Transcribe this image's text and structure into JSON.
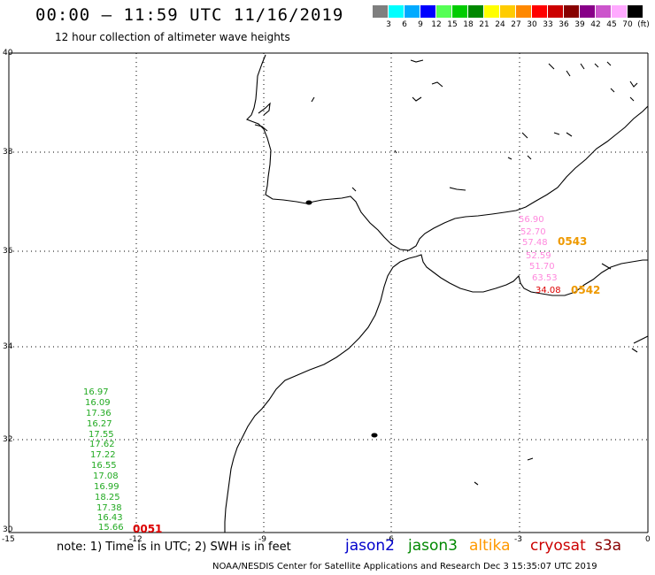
{
  "header": {
    "title": "00:00 – 11:59 UTC 11/16/2019",
    "subtitle": "12 hour collection of altimeter wave heights"
  },
  "colorbar": {
    "colors": [
      "#7f7f7f",
      "#00ffff",
      "#00aaff",
      "#0000ff",
      "#55ff55",
      "#00cc00",
      "#008800",
      "#ffff00",
      "#ffcc00",
      "#ff8800",
      "#ff0000",
      "#cc0000",
      "#880000",
      "#880088",
      "#cc55cc",
      "#ffaaff",
      "#000000"
    ],
    "labels": [
      "3",
      "6",
      "9",
      "12",
      "15",
      "18",
      "21",
      "24",
      "27",
      "30",
      "33",
      "36",
      "39",
      "42",
      "45",
      "70",
      "(ft)"
    ]
  },
  "map": {
    "x_ticks": [
      "-15",
      "-12",
      "-9",
      "-6",
      "-3",
      "0"
    ],
    "y_ticks": [
      "40",
      "38",
      "36",
      "34",
      "32",
      "30"
    ]
  },
  "observations": {
    "jason3": {
      "color": "#22aa22",
      "values": [
        "16.97",
        "16.09",
        "17.36",
        "16.27",
        "17.55",
        "17.62",
        "17.22",
        "16.55",
        "17.08",
        "16.99",
        "18.25",
        "17.38",
        "16.43",
        "15.66"
      ]
    },
    "cryosat": {
      "color": "#ff66cc",
      "values": [
        "56.90",
        "52.70",
        "57.48",
        "52.59",
        "51.70",
        "63.53"
      ]
    },
    "cryosat_red": {
      "color": "#dd0000",
      "value": "34.08"
    },
    "times": {
      "jason3_time": "0051",
      "altika_time_1": "0543",
      "altika_time_2": "0542"
    }
  },
  "footer": {
    "note": "note: 1) Time is in UTC; 2) SWH is in feet",
    "satellites": [
      {
        "name": "jason2",
        "color": "#0000cc"
      },
      {
        "name": "jason3",
        "color": "#008800"
      },
      {
        "name": "altika",
        "color": "#ff9900"
      },
      {
        "name": "cryosat",
        "color": "#cc0000"
      },
      {
        "name": "s3a",
        "color": "#880000"
      }
    ],
    "credit": "NOAA/NESDIS Center for Satellite Applications and Research    Dec  3 15:35:07 UTC 2019"
  }
}
